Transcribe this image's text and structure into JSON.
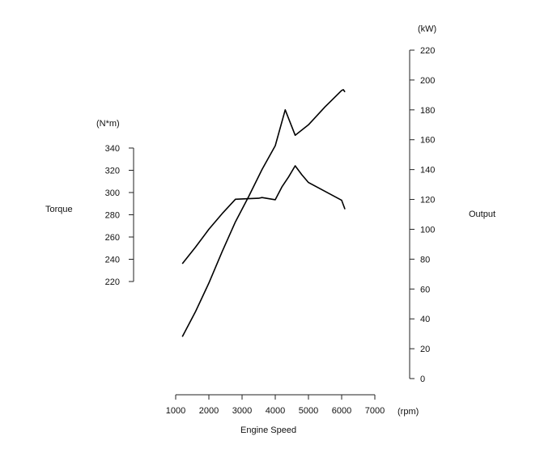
{
  "chart_data": {
    "type": "line",
    "xlabel": "Engine Speed",
    "x_unit": "(rpm)",
    "x_ticks": [
      1000,
      2000,
      3000,
      4000,
      5000,
      6000,
      7000
    ],
    "xlim": [
      1000,
      7000
    ],
    "left_axis": {
      "label": "Torque",
      "unit": "(N*m)",
      "ticks": [
        220,
        240,
        260,
        280,
        300,
        320,
        340
      ],
      "range": [
        220,
        340
      ]
    },
    "right_axis": {
      "label": "Output",
      "unit": "(kW)",
      "ticks": [
        0,
        20,
        40,
        60,
        80,
        100,
        120,
        140,
        160,
        180,
        200,
        220
      ],
      "range": [
        0,
        220
      ]
    },
    "series": [
      {
        "axis": "left",
        "x": [
          1200,
          1600,
          2000,
          2400,
          2800,
          3200,
          3500,
          3600,
          3800,
          4000,
          4200,
          4400,
          4600,
          4800,
          5000,
          5500,
          6000,
          6100
        ],
        "y": [
          236,
          251,
          267,
          281,
          294,
          294.5,
          294.8,
          295.5,
          294.5,
          293.5,
          305,
          314,
          324,
          316,
          309,
          301,
          293,
          285
        ]
      },
      {
        "axis": "right",
        "x": [
          1200,
          1600,
          2000,
          2400,
          2800,
          3200,
          3600,
          4000,
          4300,
          4600,
          5000,
          5500,
          6000,
          6050,
          6100
        ],
        "y": [
          28,
          45,
          64,
          85,
          105,
          122,
          140,
          156,
          180,
          163,
          170,
          182,
          193,
          193.5,
          192
        ]
      }
    ]
  }
}
